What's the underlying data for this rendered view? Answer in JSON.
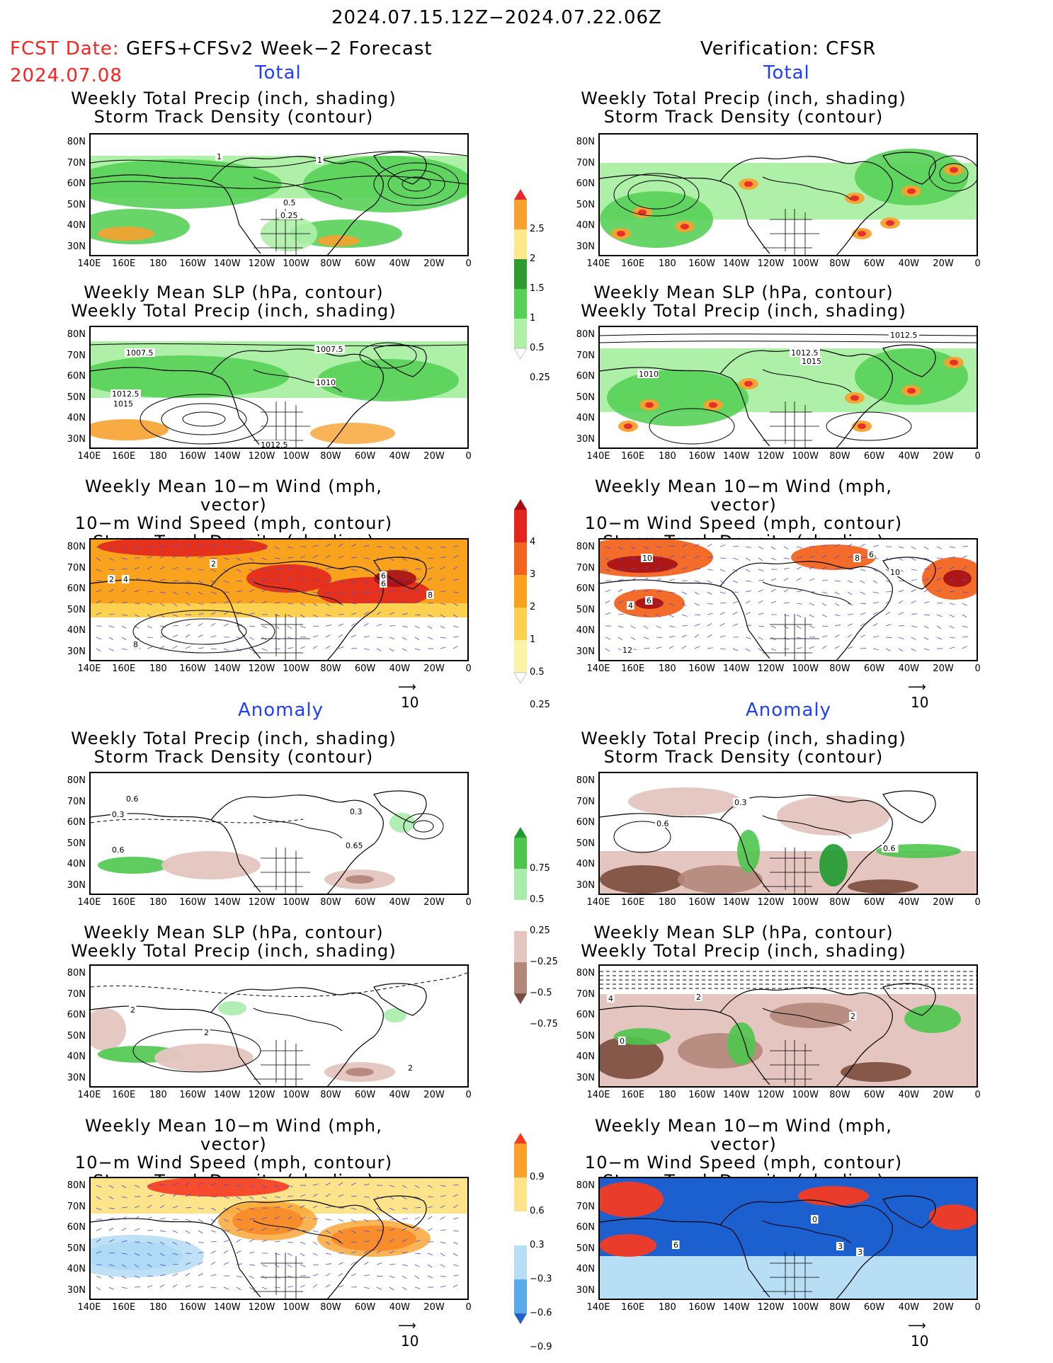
{
  "header": {
    "date_range": "2024.07.15.12Z−2024.07.22.06Z",
    "fcst_label": "FCST Date:",
    "fcst_model": "GEFS+CFSv2 Week−2 Forecast",
    "fcst_date": "2024.07.08",
    "verification": "Verification: CFSR"
  },
  "sections": {
    "total": "Total",
    "anomaly": "Anomaly"
  },
  "titles": {
    "precip_storm": [
      "Weekly Total Precip (inch, shading)",
      "Storm Track Density (contour)"
    ],
    "slp_precip": [
      "Weekly Mean SLP (hPa, contour)",
      "Weekly Total Precip (inch, shading)"
    ],
    "wind_storm": [
      "Weekly Mean 10−m Wind (mph, vector)",
      "10−m Wind Speed (mph, contour)",
      "Storm Track Density (shading)"
    ]
  },
  "axes": {
    "lat_labels": [
      "80N",
      "70N",
      "60N",
      "50N",
      "40N",
      "30N"
    ],
    "lon_labels": [
      "140E",
      "160E",
      "180",
      "160W",
      "140W",
      "120W",
      "100W",
      "80W",
      "60W",
      "40W",
      "20W",
      "0"
    ]
  },
  "vector_ref": "10",
  "colorbars": {
    "precip_total": {
      "labels": [
        "2.5",
        "2",
        "1.5",
        "1",
        "0.5",
        "0.25"
      ],
      "colors": [
        "#e8282b",
        "#f7a12f",
        "#fde88a",
        "#2f9a2f",
        "#57d057",
        "#aef0a8",
        "#ffffff"
      ]
    },
    "storm_total": {
      "labels": [
        "4",
        "3",
        "2",
        "1",
        "0.5",
        "0.25"
      ],
      "colors": [
        "#a50f15",
        "#e2261d",
        "#f2641e",
        "#f9a21e",
        "#fcd14f",
        "#fdf3a8",
        "#ffffff"
      ]
    },
    "precip_anom": {
      "labels": [
        "0.75",
        "0.5",
        "0.25",
        "−0.25",
        "−0.5",
        "−0.75"
      ],
      "colors": [
        "#1e9a31",
        "#4cc64c",
        "#a9ecab",
        "#ffffff",
        "#e4c5bf",
        "#b4877b",
        "#7b4b3d"
      ]
    },
    "storm_anom": {
      "labels": [
        "0.9",
        "0.6",
        "0.3",
        "−0.3",
        "−0.6",
        "−0.9"
      ],
      "colors": [
        "#f53a22",
        "#f9a12a",
        "#fde38a",
        "#ffffff",
        "#b7def5",
        "#59aaec",
        "#1c5fcf"
      ]
    }
  },
  "contour_labels": {
    "fc_p1": [
      "1",
      "1",
      "0.5",
      "0.25"
    ],
    "fc_p2": [
      "1007.5",
      "1007.5",
      "1010",
      "1012.5",
      "1015",
      "1012.5"
    ],
    "fc_p3": [
      "2",
      "4",
      "2",
      "6",
      "6",
      "8",
      "8"
    ],
    "vf_p2": [
      "1012.5",
      "1012.5",
      "1015",
      "1010"
    ],
    "vf_p3": [
      "10",
      "4",
      "6",
      "8",
      "10",
      "12",
      "6"
    ],
    "fc_a1": [
      "0.6",
      "0.3",
      "0.3",
      "0.6",
      "0.65"
    ],
    "fc_a2": [
      "2",
      "2",
      "2"
    ],
    "vf_a1": [
      "0.6",
      "0.3",
      "0.6"
    ],
    "vf_a2": [
      "4",
      "2",
      "0",
      "2"
    ],
    "vf_a3": [
      "0",
      "3",
      "3",
      "6"
    ]
  }
}
